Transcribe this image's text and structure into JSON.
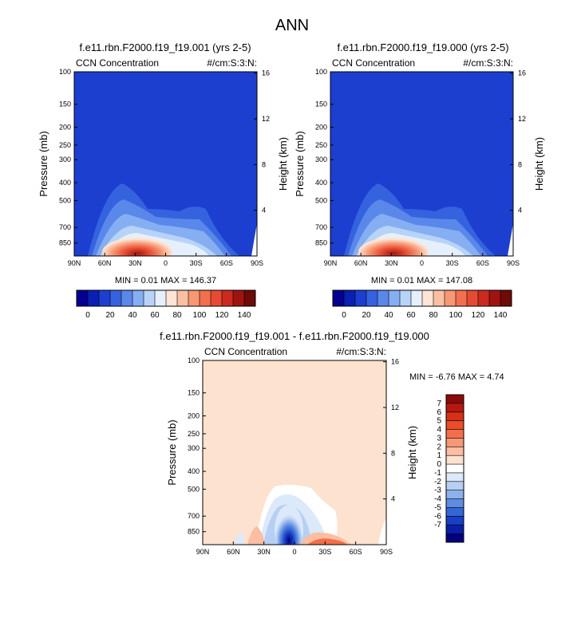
{
  "page_title": "ANN",
  "chart_data": [
    {
      "type": "heatmap",
      "title": "f.e11.rbn.F2000.f19_f19.001 (yrs 2-5)",
      "variable": "CCN Concentration",
      "units": "#/cm:S:3:N:",
      "xlabel": "",
      "ylabel": "Pressure (mb)",
      "ylabel_right": "Height (km)",
      "x_ticks": [
        "90N",
        "60N",
        "30N",
        "0",
        "30S",
        "60S",
        "90S"
      ],
      "y_ticks": [
        "100",
        "150",
        "200",
        "250",
        "300",
        "400",
        "500",
        "700",
        "850"
      ],
      "y_ticks_right": [
        "16",
        "12",
        "8",
        "4"
      ],
      "ylim": [
        100,
        1000
      ],
      "stats": "MIN =  0.01  MAX = 146.37",
      "min": 0.01,
      "max": 146.37,
      "colorbar_labels": [
        "0",
        "20",
        "40",
        "60",
        "80",
        "100",
        "120",
        "140"
      ],
      "colorbar_colors": [
        "#04008f",
        "#0a1fb4",
        "#1c3fd0",
        "#3563df",
        "#5a87ea",
        "#86aef2",
        "#b8d3f8",
        "#e6f0fc",
        "#fde4d4",
        "#fbc0a4",
        "#f79874",
        "#f2704e",
        "#e64a32",
        "#cc2a1e",
        "#a01410",
        "#6e0a08"
      ]
    },
    {
      "type": "heatmap",
      "title": "f.e11.rbn.F2000.f19_f19.000 (yrs 2-5)",
      "variable": "CCN Concentration",
      "units": "#/cm:S:3:N:",
      "xlabel": "",
      "ylabel": "Pressure (mb)",
      "ylabel_right": "Height (km)",
      "x_ticks": [
        "90N",
        "60N",
        "30N",
        "0",
        "30S",
        "60S",
        "90S"
      ],
      "y_ticks": [
        "100",
        "150",
        "200",
        "250",
        "300",
        "400",
        "500",
        "700",
        "850"
      ],
      "y_ticks_right": [
        "16",
        "12",
        "8",
        "4"
      ],
      "ylim": [
        100,
        1000
      ],
      "stats": "MIN =  0.01  MAX = 147.08",
      "min": 0.01,
      "max": 147.08,
      "colorbar_labels": [
        "0",
        "20",
        "40",
        "60",
        "80",
        "100",
        "120",
        "140"
      ],
      "colorbar_colors": [
        "#04008f",
        "#0a1fb4",
        "#1c3fd0",
        "#3563df",
        "#5a87ea",
        "#86aef2",
        "#b8d3f8",
        "#e6f0fc",
        "#fde4d4",
        "#fbc0a4",
        "#f79874",
        "#f2704e",
        "#e64a32",
        "#cc2a1e",
        "#a01410",
        "#6e0a08"
      ]
    },
    {
      "type": "heatmap",
      "title": "f.e11.rbn.F2000.f19_f19.001 - f.e11.rbn.F2000.f19_f19.000",
      "variable": "CCN Concentration",
      "units": "#/cm:S:3:N:",
      "xlabel": "",
      "ylabel": "Pressure (mb)",
      "ylabel_right": "Height (km)",
      "x_ticks": [
        "90N",
        "60N",
        "30N",
        "0",
        "30S",
        "60S",
        "90S"
      ],
      "y_ticks": [
        "100",
        "150",
        "200",
        "250",
        "300",
        "400",
        "500",
        "700",
        "850"
      ],
      "y_ticks_right": [
        "16",
        "12",
        "8",
        "4"
      ],
      "ylim": [
        100,
        1000
      ],
      "stats": "MIN = -6.76  MAX =  4.74",
      "min": -6.76,
      "max": 4.74,
      "colorbar_labels": [
        "7",
        "6",
        "5",
        "4",
        "3",
        "2",
        "1",
        "0",
        "-1",
        "-2",
        "-3",
        "-4",
        "-5",
        "-6",
        "-7"
      ],
      "colorbar_colors": [
        "#8b0a0a",
        "#b5190f",
        "#d63016",
        "#ea4d2a",
        "#f26f4c",
        "#f79777",
        "#fbbea2",
        "#fde3cf",
        "#ffffff",
        "#dce9fa",
        "#b6cff3",
        "#8cb1ec",
        "#5f8ce2",
        "#3566d6",
        "#1740c6",
        "#0a1fa8",
        "#03007d"
      ]
    }
  ]
}
